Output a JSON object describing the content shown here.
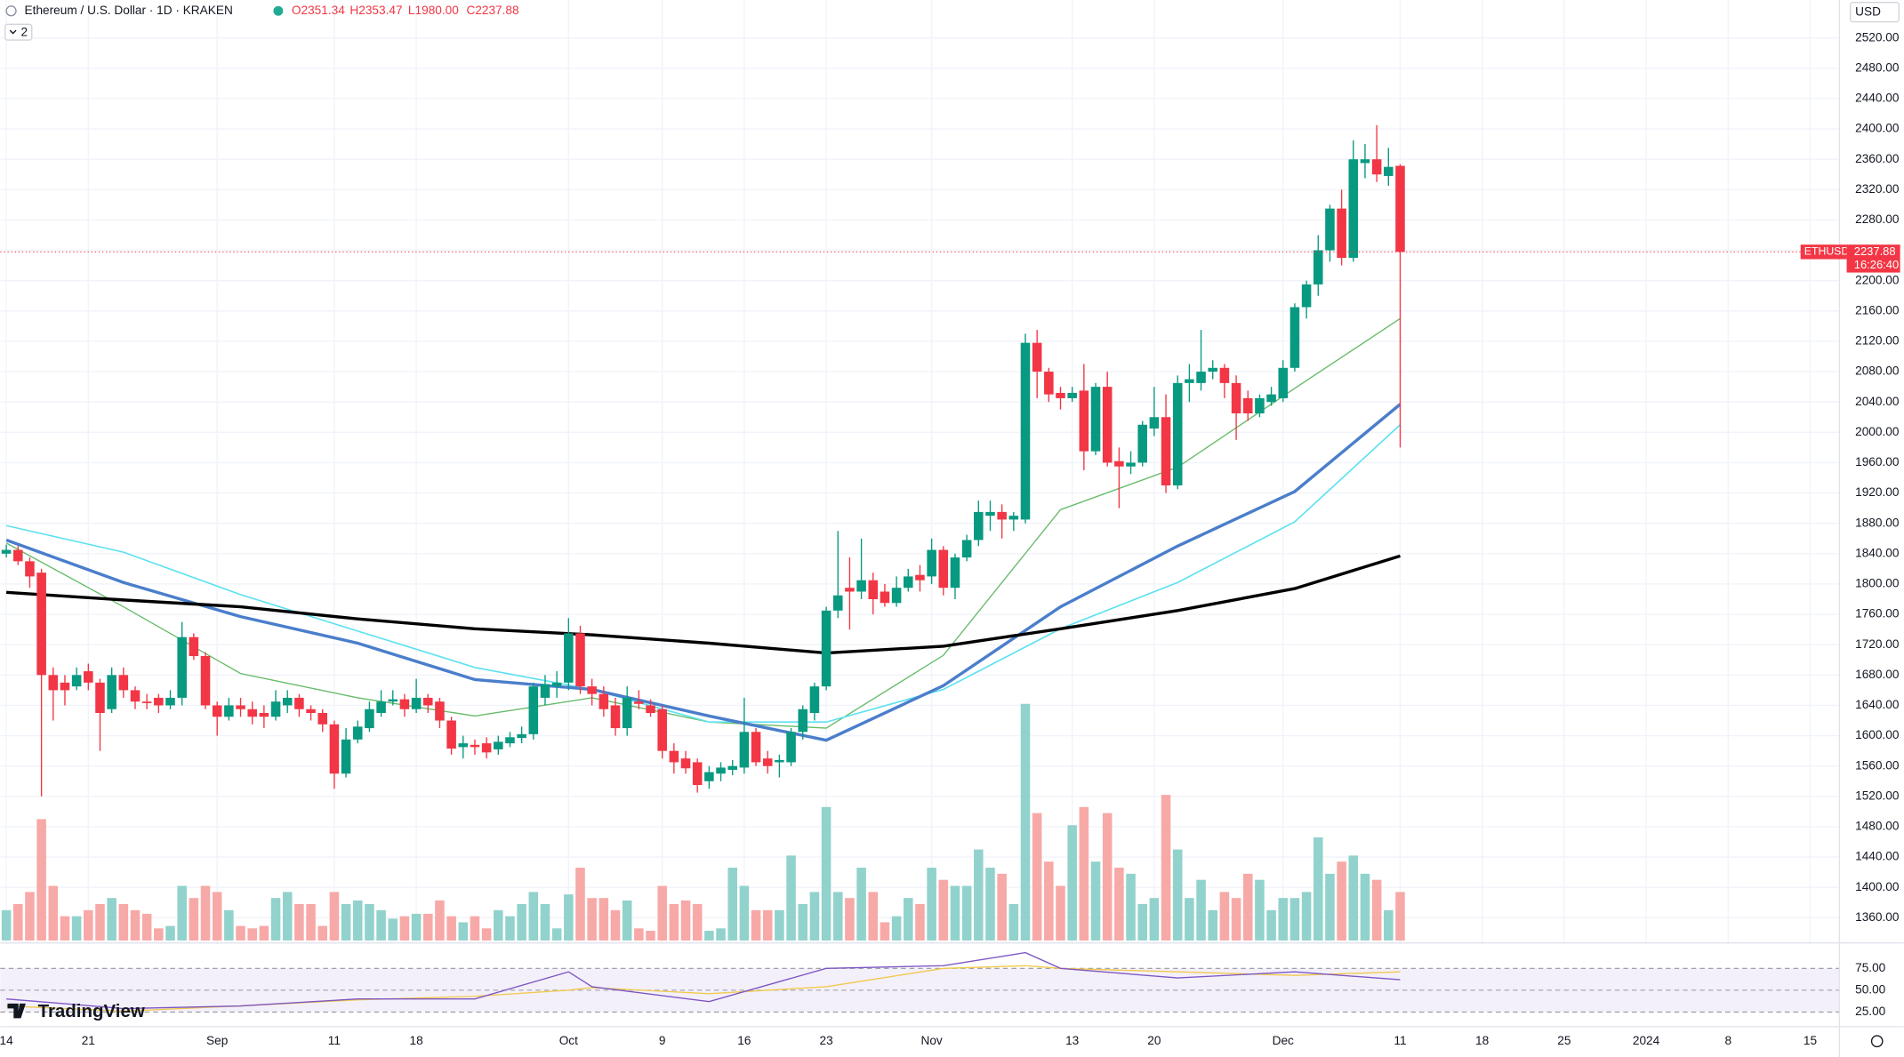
{
  "header": {
    "title": "Ethereum / U.S. Dollar · 1D · KRAKEN",
    "ohlc": [
      "O2351.34",
      "H2353.47",
      "L1980.00",
      "C2237.88"
    ],
    "interval_count": "2",
    "currency": "USD",
    "brand": "TradingView"
  },
  "chart_data": [
    {
      "type": "candlestick",
      "x": [
        0,
        1,
        2,
        3,
        4,
        5,
        6,
        7,
        8,
        9,
        10,
        11,
        12,
        13,
        14,
        15,
        16,
        17,
        18,
        19,
        20,
        21,
        22,
        23,
        24,
        25,
        26,
        27,
        28,
        29,
        30,
        31,
        32,
        33,
        34,
        35,
        36,
        37,
        38,
        39,
        40,
        41,
        42,
        43,
        44,
        45,
        46,
        47,
        48,
        49,
        50,
        51,
        52,
        53,
        54,
        55,
        56,
        57,
        58,
        59,
        60,
        61,
        62,
        63,
        64,
        65,
        66,
        67,
        68,
        69,
        70,
        71,
        72,
        73,
        74,
        75,
        76,
        77,
        78,
        79,
        80,
        81,
        82,
        83,
        84,
        85,
        86,
        87,
        88,
        89,
        90,
        91,
        92,
        93,
        94,
        95,
        96,
        97,
        98,
        99,
        100,
        101,
        102,
        103,
        104,
        105,
        106,
        107,
        108,
        109,
        110,
        111,
        112,
        113,
        114,
        115,
        116,
        117,
        118,
        119
      ],
      "open": [
        1840,
        1845,
        1830,
        1815,
        1680,
        1670,
        1665,
        1685,
        1670,
        1635,
        1680,
        1660,
        1645,
        1650,
        1640,
        1650,
        1730,
        1705,
        1640,
        1625,
        1640,
        1635,
        1630,
        1625,
        1640,
        1650,
        1635,
        1630,
        1615,
        1550,
        1595,
        1610,
        1630,
        1645,
        1648,
        1635,
        1650,
        1645,
        1620,
        1585,
        1588,
        1590,
        1582,
        1590,
        1597,
        1602,
        1650,
        1665,
        1670,
        1735,
        1665,
        1655,
        1640,
        1610,
        1645,
        1640,
        1635,
        1580,
        1570,
        1565,
        1540,
        1550,
        1555,
        1558,
        1605,
        1570,
        1565,
        1565,
        1605,
        1630,
        1665,
        1765,
        1795,
        1790,
        1805,
        1790,
        1775,
        1795,
        1812,
        1810,
        1845,
        1795,
        1835,
        1858,
        1890,
        1895,
        1885,
        1885,
        2118,
        2080,
        2052,
        2045,
        2055,
        1975,
        2060,
        1962,
        1955,
        1960,
        2005,
        2020,
        1930,
        2065,
        2065,
        2080,
        2085,
        2065,
        2045,
        2025,
        2040,
        2045,
        2085,
        2165,
        2195,
        2240,
        2295,
        2230,
        2355,
        2360,
        2338,
        2351.34
      ],
      "high": [
        1852,
        1850,
        1835,
        1820,
        1690,
        1680,
        1690,
        1695,
        1675,
        1690,
        1690,
        1665,
        1655,
        1655,
        1660,
        1750,
        1735,
        1710,
        1645,
        1650,
        1650,
        1645,
        1640,
        1660,
        1660,
        1655,
        1640,
        1635,
        1620,
        1610,
        1620,
        1645,
        1660,
        1660,
        1655,
        1675,
        1655,
        1650,
        1625,
        1600,
        1595,
        1598,
        1600,
        1605,
        1612,
        1670,
        1680,
        1685,
        1755,
        1745,
        1675,
        1665,
        1650,
        1665,
        1660,
        1648,
        1640,
        1590,
        1580,
        1570,
        1560,
        1565,
        1568,
        1650,
        1610,
        1580,
        1575,
        1610,
        1640,
        1670,
        1770,
        1870,
        1835,
        1860,
        1815,
        1800,
        1810,
        1820,
        1825,
        1860,
        1850,
        1840,
        1865,
        1910,
        1910,
        1905,
        1895,
        2130,
        2135,
        2085,
        2060,
        2060,
        2090,
        2065,
        2080,
        1980,
        1975,
        2015,
        2060,
        2050,
        2075,
        2090,
        2135,
        2095,
        2090,
        2075,
        2055,
        2050,
        2060,
        2095,
        2170,
        2200,
        2260,
        2300,
        2320,
        2385,
        2380,
        2405,
        2375,
        2353.47
      ],
      "low": [
        1835,
        1825,
        1795,
        1520,
        1620,
        1640,
        1660,
        1660,
        1580,
        1630,
        1650,
        1635,
        1635,
        1630,
        1635,
        1640,
        1700,
        1635,
        1600,
        1620,
        1625,
        1615,
        1610,
        1620,
        1630,
        1625,
        1620,
        1605,
        1530,
        1545,
        1590,
        1605,
        1625,
        1640,
        1625,
        1630,
        1630,
        1610,
        1575,
        1570,
        1575,
        1570,
        1575,
        1585,
        1590,
        1595,
        1640,
        1650,
        1660,
        1655,
        1640,
        1625,
        1600,
        1600,
        1635,
        1625,
        1570,
        1550,
        1550,
        1525,
        1530,
        1540,
        1548,
        1550,
        1560,
        1550,
        1545,
        1560,
        1595,
        1620,
        1660,
        1755,
        1740,
        1780,
        1760,
        1770,
        1770,
        1790,
        1790,
        1800,
        1785,
        1780,
        1830,
        1850,
        1870,
        1860,
        1870,
        1880,
        2045,
        2040,
        2030,
        2040,
        1950,
        1970,
        1955,
        1900,
        1945,
        1955,
        1995,
        1920,
        1925,
        2040,
        2055,
        2070,
        2045,
        1990,
        2015,
        2020,
        2035,
        2040,
        2080,
        2150,
        2180,
        2225,
        2220,
        2225,
        2335,
        2330,
        2325,
        1980
      ],
      "close": [
        1845,
        1830,
        1810,
        1680,
        1660,
        1660,
        1680,
        1670,
        1630,
        1680,
        1660,
        1645,
        1643,
        1640,
        1650,
        1730,
        1705,
        1640,
        1625,
        1640,
        1635,
        1625,
        1625,
        1645,
        1650,
        1635,
        1630,
        1615,
        1550,
        1595,
        1612,
        1635,
        1645,
        1648,
        1635,
        1650,
        1640,
        1620,
        1583,
        1590,
        1585,
        1578,
        1592,
        1598,
        1602,
        1665,
        1668,
        1670,
        1735,
        1665,
        1655,
        1635,
        1610,
        1650,
        1642,
        1630,
        1580,
        1565,
        1557,
        1535,
        1552,
        1558,
        1560,
        1605,
        1565,
        1560,
        1568,
        1605,
        1635,
        1665,
        1765,
        1785,
        1790,
        1805,
        1780,
        1775,
        1795,
        1810,
        1805,
        1845,
        1795,
        1835,
        1858,
        1895,
        1895,
        1885,
        1890,
        2118,
        2080,
        2050,
        2045,
        2052,
        1975,
        2060,
        1960,
        1955,
        1960,
        2010,
        2020,
        1930,
        2065,
        2070,
        2080,
        2085,
        2065,
        2025,
        2025,
        2045,
        2050,
        2085,
        2165,
        2195,
        2240,
        2295,
        2230,
        2360,
        2360,
        2340,
        2350,
        2237.88
      ],
      "up_color": "#089981",
      "down_color": "#f23645",
      "xlim": [
        -0.52,
        156.5
      ],
      "ylim": [
        1330,
        2570
      ],
      "grid": true,
      "xticks": [
        {
          "value": 0,
          "label": "14"
        },
        {
          "value": 7,
          "label": "21"
        },
        {
          "value": 18,
          "label": "Sep"
        },
        {
          "value": 28,
          "label": "11"
        },
        {
          "value": 35,
          "label": "18"
        },
        {
          "value": 48,
          "label": "Oct"
        },
        {
          "value": 56,
          "label": "9"
        },
        {
          "value": 63,
          "label": "16"
        },
        {
          "value": 70,
          "label": "23"
        },
        {
          "value": 79,
          "label": "Nov"
        },
        {
          "value": 91,
          "label": "13"
        },
        {
          "value": 98,
          "label": "20"
        },
        {
          "value": 109,
          "label": "Dec"
        },
        {
          "value": 119,
          "label": "11"
        },
        {
          "value": 126,
          "label": "18"
        },
        {
          "value": 133,
          "label": "25"
        },
        {
          "value": 140,
          "label": "2024"
        },
        {
          "value": 147,
          "label": "8"
        },
        {
          "value": 154,
          "label": "15"
        }
      ],
      "yticks": [
        {
          "value": 1360,
          "label": "1360.00"
        },
        {
          "value": 1400,
          "label": "1400.00"
        },
        {
          "value": 1440,
          "label": "1440.00"
        },
        {
          "value": 1480,
          "label": "1480.00"
        },
        {
          "value": 1520,
          "label": "1520.00"
        },
        {
          "value": 1560,
          "label": "1560.00"
        },
        {
          "value": 1600,
          "label": "1600.00"
        },
        {
          "value": 1640,
          "label": "1640.00"
        },
        {
          "value": 1680,
          "label": "1680.00"
        },
        {
          "value": 1720,
          "label": "1720.00"
        },
        {
          "value": 1760,
          "label": "1760.00"
        },
        {
          "value": 1800,
          "label": "1800.00"
        },
        {
          "value": 1840,
          "label": "1840.00"
        },
        {
          "value": 1880,
          "label": "1880.00"
        },
        {
          "value": 1920,
          "label": "1920.00"
        },
        {
          "value": 1960,
          "label": "1960.00"
        },
        {
          "value": 2000,
          "label": "2000.00"
        },
        {
          "value": 2040,
          "label": "2040.00"
        },
        {
          "value": 2080,
          "label": "2080.00"
        },
        {
          "value": 2120,
          "label": "2120.00"
        },
        {
          "value": 2160,
          "label": "2160.00"
        },
        {
          "value": 2200,
          "label": "2200.00"
        },
        {
          "value": 2240,
          "label": "2240.00"
        },
        {
          "value": 2280,
          "label": "2280.00"
        },
        {
          "value": 2320,
          "label": "2320.00"
        },
        {
          "value": 2360,
          "label": "2360.00"
        },
        {
          "value": 2400,
          "label": "2400.00"
        },
        {
          "value": 2440,
          "label": "2440.00"
        },
        {
          "value": 2480,
          "label": "2480.00"
        },
        {
          "value": 2520,
          "label": "2520.00"
        }
      ],
      "volume": {
        "values": [
          25,
          30,
          40,
          100,
          45,
          20,
          20,
          25,
          30,
          35,
          30,
          25,
          22,
          10,
          12,
          45,
          35,
          45,
          40,
          25,
          12,
          10,
          12,
          35,
          40,
          30,
          30,
          12,
          40,
          30,
          33,
          30,
          25,
          18,
          20,
          22,
          22,
          33,
          20,
          15,
          20,
          10,
          25,
          20,
          30,
          40,
          30,
          10,
          38,
          60,
          35,
          35,
          25,
          33,
          10,
          8,
          45,
          30,
          33,
          30,
          8,
          10,
          60,
          45,
          25,
          25,
          25,
          70,
          30,
          40,
          110,
          40,
          35,
          60,
          40,
          15,
          20,
          35,
          30,
          60,
          50,
          45,
          45,
          75,
          60,
          55,
          30,
          195,
          105,
          65,
          45,
          95,
          110,
          65,
          105,
          60,
          55,
          30,
          35,
          120,
          75,
          35,
          50,
          25,
          40,
          35,
          55,
          50,
          25,
          35,
          35,
          40,
          85,
          55,
          65,
          70,
          55,
          50,
          25,
          40
        ],
        "ylim": [
          0,
          400
        ],
        "up_color": "#92d2cc",
        "down_color": "#f7a9a7"
      },
      "moving_averages": [
        {
          "color": "#66bb6a",
          "width": 1,
          "x": [
            0,
            10,
            20,
            30,
            40,
            50,
            60,
            70,
            80,
            90,
            100,
            110,
            119
          ],
          "values": [
            1854,
            1770,
            1682,
            1650,
            1626,
            1650,
            1618,
            1610,
            1706,
            1898,
            1954,
            2058,
            2150
          ]
        },
        {
          "color": "#5ce1f0",
          "width": 1.2,
          "x": [
            0,
            10,
            20,
            30,
            40,
            50,
            60,
            70,
            80,
            90,
            100,
            110,
            119
          ],
          "values": [
            1877,
            1842,
            1786,
            1738,
            1690,
            1661,
            1618,
            1618,
            1661,
            1741,
            1802,
            1882,
            2010
          ]
        },
        {
          "color": "#4a7ecb",
          "width": 2.5,
          "x": [
            0,
            10,
            20,
            30,
            40,
            50,
            60,
            70,
            80,
            90,
            100,
            110,
            119
          ],
          "values": [
            1858,
            1802,
            1757,
            1722,
            1674,
            1661,
            1626,
            1594,
            1666,
            1770,
            1850,
            1922,
            2037
          ]
        },
        {
          "color": "#000000",
          "width": 2.5,
          "x": [
            0,
            10,
            20,
            30,
            40,
            50,
            60,
            70,
            80,
            90,
            100,
            110,
            119
          ],
          "values": [
            1789,
            1779,
            1770,
            1754,
            1741,
            1733,
            1722,
            1709,
            1718,
            1741,
            1765,
            1794,
            1837
          ]
        }
      ],
      "last_price": {
        "symbol": "ETHUSD",
        "label": "2237.88",
        "countdown": "16:26:40",
        "color": "#f23645"
      }
    },
    {
      "type": "line",
      "x": [
        0,
        10,
        20,
        30,
        40,
        48,
        50,
        60,
        70,
        80,
        87,
        90,
        100,
        110,
        119
      ],
      "series": [
        {
          "color": "#f2c94c",
          "values": [
            32,
            26,
            32,
            39,
            43,
            50,
            53,
            46,
            54,
            75,
            78,
            75,
            71,
            67,
            71
          ]
        },
        {
          "color": "#7e57c2",
          "values": [
            40,
            29,
            32,
            40,
            40,
            71,
            54,
            37,
            75,
            78,
            93,
            75,
            64,
            71,
            62
          ]
        }
      ],
      "xlim": [
        -0.52,
        156.5
      ],
      "ylim": [
        18,
        93
      ],
      "yticks": [
        {
          "value": 25,
          "label": "25.00"
        },
        {
          "value": 50,
          "label": "50.00"
        },
        {
          "value": 75,
          "label": "75.00"
        }
      ]
    }
  ]
}
